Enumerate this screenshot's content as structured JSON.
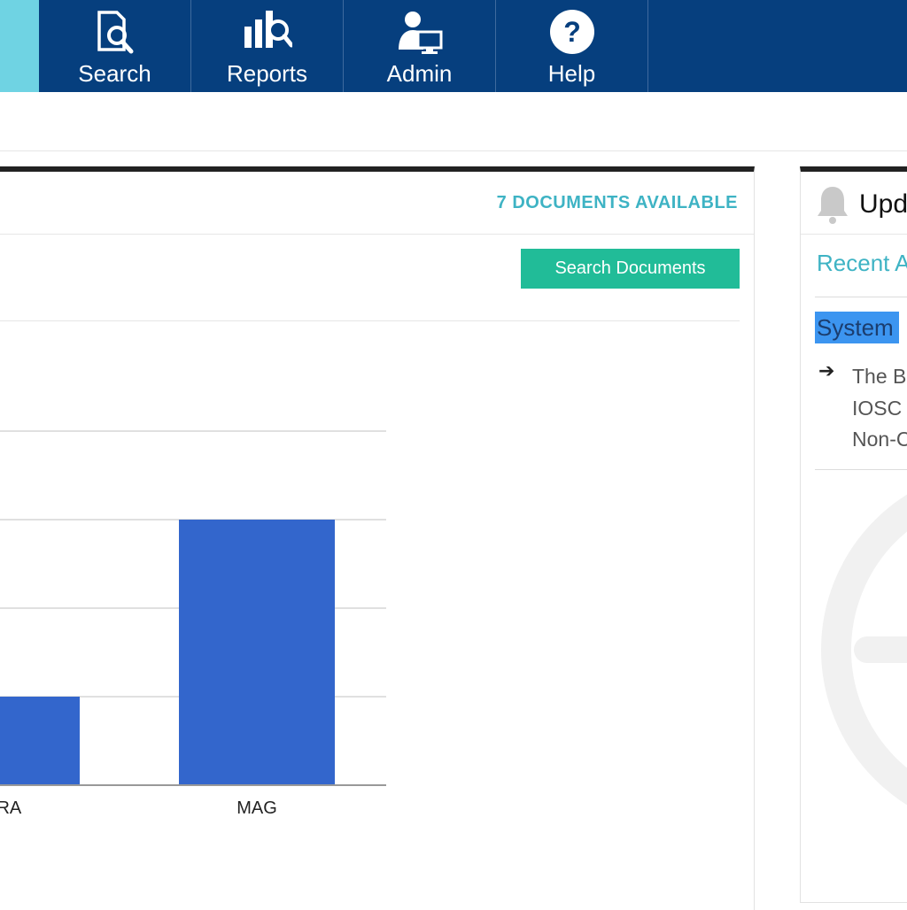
{
  "nav": {
    "items": [
      {
        "label": "Search",
        "icon": "search-document-icon"
      },
      {
        "label": "Reports",
        "icon": "reports-icon"
      },
      {
        "label": "Admin",
        "icon": "admin-icon"
      },
      {
        "label": "Help",
        "icon": "help-icon"
      }
    ],
    "colors": {
      "bar": "#063f7e",
      "active": "#6fd3e3"
    }
  },
  "documents": {
    "available_label": "7 DOCUMENTS AVAILABLE",
    "search_button": "Search Documents"
  },
  "chart_data": {
    "type": "bar",
    "categories": [
      "MRA",
      "MAG"
    ],
    "category_labels_visible": [
      "MRA",
      "MAG"
    ],
    "values": [
      1,
      3
    ],
    "ylim": [
      0,
      4
    ],
    "grid": true,
    "color": "#3366cc",
    "title": "",
    "xlabel": "",
    "ylabel": ""
  },
  "updates": {
    "title": "Upd",
    "recent_label": "Recent A",
    "system_label": "System",
    "news_lines": [
      "The B",
      "IOSC",
      "Non-C"
    ],
    "icons": {
      "bell": "bell-icon",
      "arrow": "arrow-right-icon"
    }
  }
}
